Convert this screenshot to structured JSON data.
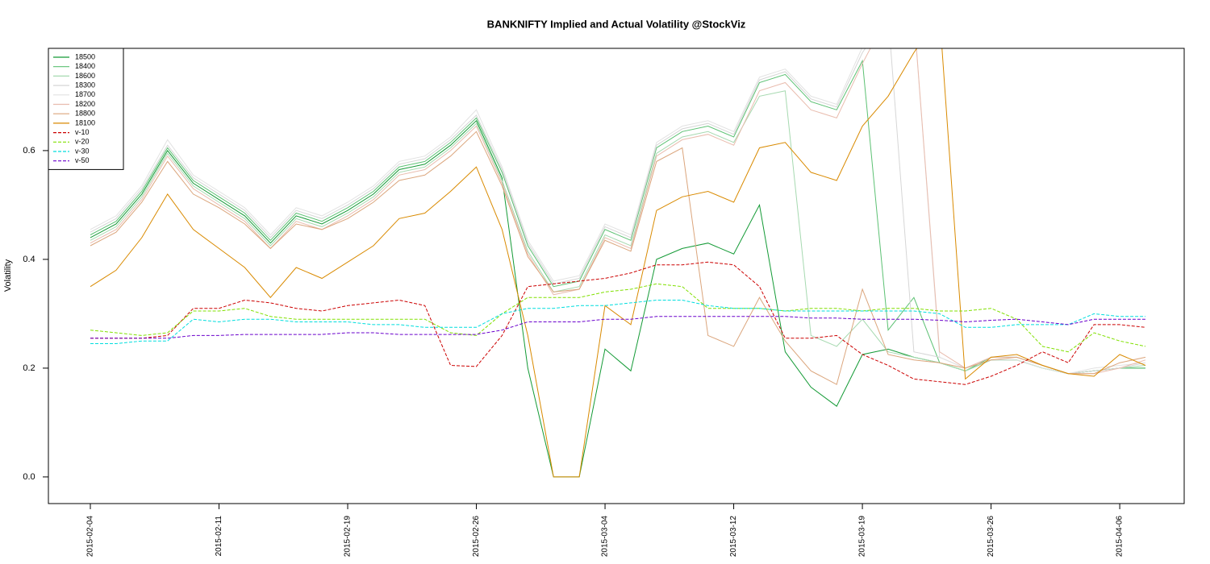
{
  "chart_data": {
    "type": "line",
    "title": "BANKNIFTY Implied and Actual Volatility @StockViz",
    "y_label": "Volatility",
    "x": [
      "2015-02-04",
      "2015-02-05",
      "2015-02-06",
      "2015-02-09",
      "2015-02-10",
      "2015-02-11",
      "2015-02-12",
      "2015-02-13",
      "2015-02-16",
      "2015-02-18",
      "2015-02-19",
      "2015-02-20",
      "2015-02-23",
      "2015-02-24",
      "2015-02-25",
      "2015-02-26",
      "2015-02-27",
      "2015-02-28",
      "2015-03-02",
      "2015-03-03",
      "2015-03-04",
      "2015-03-05",
      "2015-03-09",
      "2015-03-10",
      "2015-03-11",
      "2015-03-12",
      "2015-03-13",
      "2015-03-16",
      "2015-03-17",
      "2015-03-18",
      "2015-03-19",
      "2015-03-20",
      "2015-03-23",
      "2015-03-24",
      "2015-03-25",
      "2015-03-26",
      "2015-03-27",
      "2015-03-30",
      "2015-03-31",
      "2015-04-01",
      "2015-04-06",
      "2015-04-07"
    ],
    "xticks": [
      "2015-02-04",
      "2015-02-11",
      "2015-02-19",
      "2015-02-26",
      "2015-03-04",
      "2015-03-12",
      "2015-03-19",
      "2015-03-26",
      "2015-04-06"
    ],
    "ylim": [
      -0.049,
      0.788
    ],
    "yticks": [
      {
        "value": 0,
        "label": "0.0"
      },
      0.2,
      0.4,
      0.6
    ],
    "legend": "top-left",
    "series": [
      {
        "name": "18500",
        "color": "#139a35",
        "style": "solid",
        "values": [
          0.44,
          0.465,
          0.52,
          0.6,
          0.54,
          0.51,
          0.48,
          0.43,
          0.48,
          0.465,
          0.49,
          0.52,
          0.565,
          0.575,
          0.61,
          0.655,
          0.55,
          0.2,
          0,
          0,
          0.235,
          0.195,
          0.4,
          0.42,
          0.43,
          0.41,
          0.5,
          0.23,
          0.165,
          0.13,
          0.225,
          0.235,
          0.22,
          0.21,
          0.195,
          0.215,
          0.215,
          0.2,
          0.19,
          0.195,
          0.2,
          0.2
        ]
      },
      {
        "name": "18400",
        "color": "#5cc173",
        "style": "solid",
        "values": [
          0.445,
          0.47,
          0.525,
          0.605,
          0.545,
          0.515,
          0.485,
          0.435,
          0.485,
          0.47,
          0.495,
          0.525,
          0.57,
          0.58,
          0.615,
          0.66,
          0.56,
          0.425,
          0.35,
          0.36,
          0.455,
          0.435,
          0.605,
          0.635,
          0.645,
          0.625,
          0.725,
          0.74,
          0.69,
          0.675,
          0.765,
          0.27,
          0.33,
          0.21,
          0.195,
          0.22,
          0.22,
          0.205,
          0.19,
          0.195,
          0.2,
          0.2
        ]
      },
      {
        "name": "18600",
        "color": "#a6d9b0",
        "style": "solid",
        "values": [
          0.435,
          0.46,
          0.515,
          0.595,
          0.535,
          0.505,
          0.475,
          0.425,
          0.475,
          0.46,
          0.485,
          0.515,
          0.56,
          0.57,
          0.605,
          0.65,
          0.545,
          0.415,
          0.34,
          0.35,
          0.445,
          0.425,
          0.595,
          0.625,
          0.635,
          0.615,
          0.7,
          0.71,
          0.26,
          0.24,
          0.29,
          0.23,
          0.22,
          0.21,
          0.195,
          0.215,
          0.215,
          0.2,
          0.19,
          0.195,
          0.2,
          0.205
        ]
      },
      {
        "name": "18300",
        "color": "#d6d6d6",
        "style": "solid",
        "values": [
          0.45,
          0.475,
          0.53,
          0.61,
          0.55,
          0.52,
          0.49,
          0.44,
          0.49,
          0.475,
          0.5,
          0.53,
          0.575,
          0.585,
          0.62,
          0.665,
          0.565,
          0.43,
          0.355,
          0.365,
          0.46,
          0.44,
          0.61,
          0.64,
          0.65,
          0.63,
          0.73,
          0.745,
          0.695,
          0.68,
          0.78,
          0.85,
          0.23,
          0.22,
          0.2,
          0.22,
          0.22,
          0.205,
          0.19,
          0.195,
          0.2,
          0.21
        ]
      },
      {
        "name": "18700",
        "color": "#e2e2e2",
        "style": "solid",
        "values": [
          0.455,
          0.48,
          0.535,
          0.62,
          0.555,
          0.525,
          0.495,
          0.445,
          0.495,
          0.48,
          0.505,
          0.535,
          0.58,
          0.59,
          0.625,
          0.675,
          0.57,
          0.435,
          0.36,
          0.37,
          0.465,
          0.445,
          0.615,
          0.645,
          0.655,
          0.635,
          0.735,
          0.75,
          0.7,
          0.685,
          0.79,
          0.85,
          0.85,
          0.22,
          0.2,
          0.215,
          0.215,
          0.2,
          0.19,
          0.2,
          0.205,
          0.21
        ]
      },
      {
        "name": "18200",
        "color": "#e9bcae",
        "style": "solid",
        "values": [
          0.43,
          0.455,
          0.51,
          0.59,
          0.53,
          0.5,
          0.47,
          0.42,
          0.47,
          0.455,
          0.48,
          0.51,
          0.555,
          0.565,
          0.6,
          0.645,
          0.54,
          0.41,
          0.335,
          0.345,
          0.44,
          0.42,
          0.59,
          0.62,
          0.63,
          0.61,
          0.71,
          0.725,
          0.675,
          0.66,
          0.76,
          0.85,
          0.85,
          0.23,
          0.2,
          0.22,
          0.22,
          0.205,
          0.19,
          0.19,
          0.2,
          0.215
        ]
      },
      {
        "name": "18800",
        "color": "#dba57c",
        "style": "solid",
        "values": [
          0.425,
          0.45,
          0.505,
          0.58,
          0.52,
          0.495,
          0.465,
          0.42,
          0.465,
          0.455,
          0.475,
          0.505,
          0.545,
          0.555,
          0.59,
          0.635,
          0.535,
          0.405,
          0.34,
          0.345,
          0.435,
          0.415,
          0.58,
          0.605,
          0.26,
          0.24,
          0.33,
          0.25,
          0.195,
          0.17,
          0.345,
          0.225,
          0.215,
          0.21,
          0.2,
          0.215,
          0.22,
          0.205,
          0.19,
          0.19,
          0.21,
          0.22
        ]
      },
      {
        "name": "18100",
        "color": "#d98a00",
        "style": "solid",
        "values": [
          0.35,
          0.38,
          0.44,
          0.52,
          0.455,
          0.42,
          0.385,
          0.33,
          0.385,
          0.365,
          0.395,
          0.425,
          0.475,
          0.485,
          0.525,
          0.57,
          0.455,
          0.26,
          0,
          0,
          0.315,
          0.28,
          0.49,
          0.515,
          0.525,
          0.505,
          0.605,
          0.615,
          0.56,
          0.545,
          0.645,
          0.7,
          0.78,
          0.85,
          0.18,
          0.22,
          0.225,
          0.205,
          0.19,
          0.185,
          0.225,
          0.205
        ]
      },
      {
        "name": "v-10",
        "color": "#cc0000",
        "style": "dashed",
        "values": [
          0.255,
          0.255,
          0.255,
          0.26,
          0.31,
          0.31,
          0.325,
          0.32,
          0.31,
          0.305,
          0.315,
          0.32,
          0.325,
          0.315,
          0.205,
          0.203,
          0.26,
          0.35,
          0.355,
          0.36,
          0.365,
          0.375,
          0.39,
          0.39,
          0.395,
          0.39,
          0.35,
          0.255,
          0.255,
          0.26,
          0.225,
          0.205,
          0.18,
          0.175,
          0.17,
          0.185,
          0.205,
          0.23,
          0.21,
          0.28,
          0.28,
          0.275
        ]
      },
      {
        "name": "v-20",
        "color": "#80e000",
        "style": "dashed",
        "values": [
          0.27,
          0.265,
          0.26,
          0.265,
          0.305,
          0.305,
          0.31,
          0.295,
          0.29,
          0.29,
          0.29,
          0.29,
          0.29,
          0.29,
          0.265,
          0.26,
          0.3,
          0.33,
          0.33,
          0.33,
          0.34,
          0.345,
          0.355,
          0.35,
          0.31,
          0.31,
          0.31,
          0.305,
          0.31,
          0.31,
          0.305,
          0.31,
          0.31,
          0.305,
          0.305,
          0.31,
          0.29,
          0.24,
          0.23,
          0.265,
          0.25,
          0.24
        ]
      },
      {
        "name": "v-30",
        "color": "#00dede",
        "style": "dashed",
        "values": [
          0.245,
          0.245,
          0.25,
          0.25,
          0.29,
          0.285,
          0.29,
          0.29,
          0.285,
          0.285,
          0.285,
          0.28,
          0.28,
          0.275,
          0.275,
          0.275,
          0.3,
          0.31,
          0.31,
          0.315,
          0.315,
          0.32,
          0.325,
          0.325,
          0.315,
          0.31,
          0.31,
          0.305,
          0.305,
          0.305,
          0.305,
          0.305,
          0.305,
          0.3,
          0.275,
          0.275,
          0.28,
          0.28,
          0.28,
          0.3,
          0.295,
          0.295
        ]
      },
      {
        "name": "v-50",
        "color": "#6a00cc",
        "style": "dashed",
        "values": [
          0.255,
          0.255,
          0.255,
          0.255,
          0.26,
          0.26,
          0.262,
          0.262,
          0.262,
          0.262,
          0.265,
          0.265,
          0.262,
          0.262,
          0.262,
          0.262,
          0.27,
          0.285,
          0.285,
          0.285,
          0.29,
          0.29,
          0.295,
          0.295,
          0.295,
          0.295,
          0.295,
          0.295,
          0.292,
          0.292,
          0.29,
          0.29,
          0.29,
          0.288,
          0.285,
          0.288,
          0.29,
          0.285,
          0.28,
          0.29,
          0.29,
          0.29
        ]
      }
    ]
  }
}
